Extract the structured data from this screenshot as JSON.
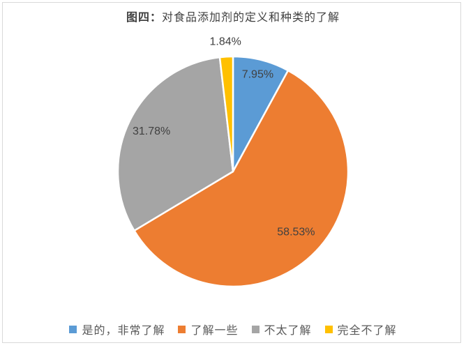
{
  "header": {
    "title_prefix": "图四：",
    "title_rest": "对食品添加剂的定义和种类的了解"
  },
  "chart_data": {
    "type": "pie",
    "title": "图四：对食品添加剂的定义和种类的了解",
    "categories": [
      "是的，非常了解",
      "了解一些",
      "不太了解",
      "完全不了解"
    ],
    "values": [
      7.95,
      58.53,
      31.78,
      1.84
    ],
    "data_labels": [
      "7.95%",
      "58.53%",
      "31.78%",
      "1.84%"
    ],
    "colors": [
      "#5B9BD5",
      "#ED7D31",
      "#A5A5A5",
      "#FFC000"
    ],
    "start_angle_deg": 0,
    "direction": "clockwise",
    "legend_position": "bottom",
    "label_color": "#404040",
    "slice_border_color": "#FFFFFF"
  },
  "legend": {
    "items": [
      {
        "label": "是的，非常了解",
        "color": "#5B9BD5"
      },
      {
        "label": "了解一些",
        "color": "#ED7D31"
      },
      {
        "label": "不太了解",
        "color": "#A5A5A5"
      },
      {
        "label": "完全不了解",
        "color": "#FFC000"
      }
    ]
  }
}
